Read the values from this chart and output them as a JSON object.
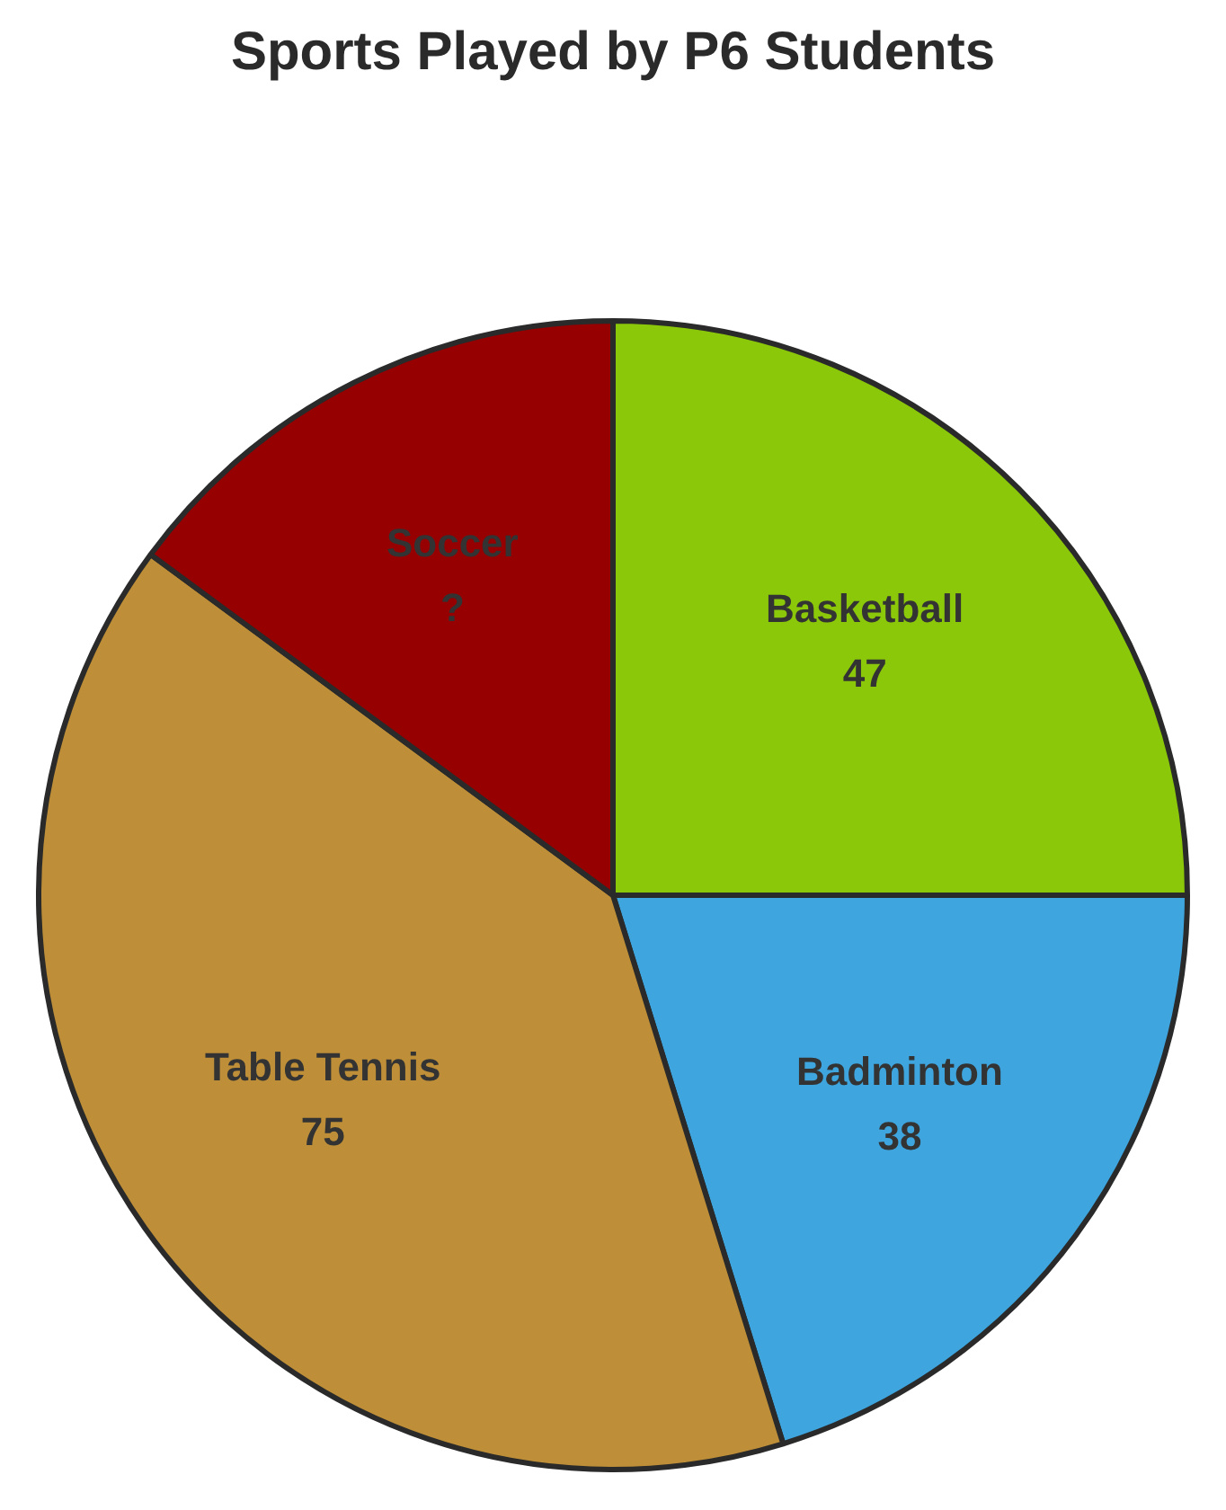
{
  "chart_data": {
    "type": "pie",
    "title": "Sports Played by P6 Students",
    "categories": [
      "Basketball",
      "Badminton",
      "Table Tennis",
      "Soccer"
    ],
    "values": [
      47,
      38,
      75,
      28
    ],
    "value_labels": [
      "47",
      "38",
      "75",
      "?"
    ],
    "colors": [
      "#8cc80a",
      "#3ea5de",
      "#be8f38",
      "#960000"
    ],
    "legend": false
  }
}
